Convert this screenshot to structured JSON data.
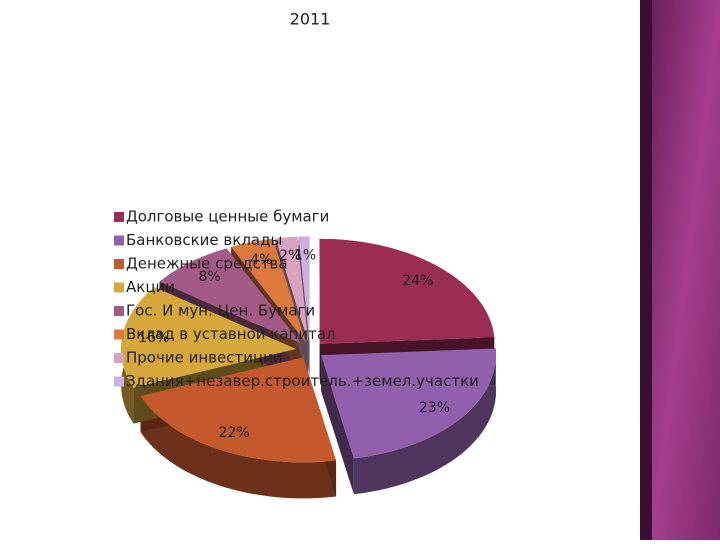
{
  "chart_data": {
    "type": "pie",
    "title": "2011",
    "categories": [
      "Долговые ценные бумаги",
      "Банковские вклады",
      "Денежные средства",
      "Акции",
      "Гос. И мун. Цен. Бумаги",
      "Вклад в уставной капитал",
      "Прочие инвестиции",
      "Здания+незавер.строитель.+земел.участки"
    ],
    "values": [
      24,
      23,
      22,
      16,
      8,
      4,
      2,
      1
    ],
    "value_labels": [
      "24%",
      "23%",
      "22%",
      "16%",
      "8%",
      "4%",
      "2%",
      "1%"
    ],
    "colors": [
      "#9b2d55",
      "#9160ac",
      "#c4592c",
      "#d6a83a",
      "#a35a86",
      "#dc7a3e",
      "#d8a2c0",
      "#cdb0e0"
    ],
    "legend": "left"
  }
}
